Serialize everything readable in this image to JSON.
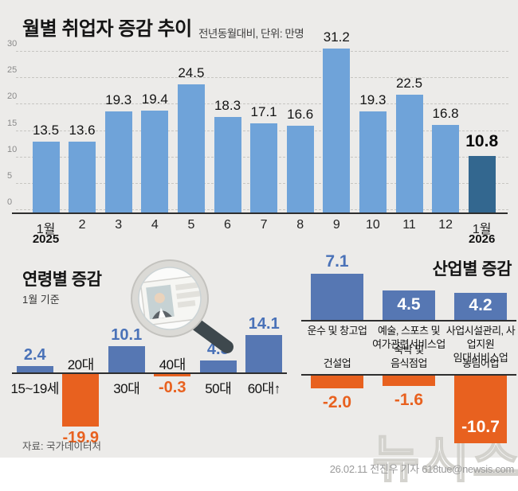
{
  "header": {
    "title": "월별 취업자 증감 추이",
    "subtitle": "전년동월대비, 단위: 만명"
  },
  "colors": {
    "background": "#ECEBE9",
    "bar_blue": "#6FA3D9",
    "bar_dark_blue": "#33678F",
    "bar_deep_blue": "#5677B3",
    "bar_orange": "#E8611F",
    "value_blue_text": "#4A72B8",
    "value_orange_text": "#E8611F"
  },
  "chart_data": [
    {
      "name": "monthly-employment-change",
      "type": "bar",
      "title": "월별 취업자 증감 추이",
      "subtitle": "전년동월대비, 단위: 만명",
      "categories": [
        "1월",
        "2",
        "3",
        "4",
        "5",
        "6",
        "7",
        "8",
        "9",
        "10",
        "11",
        "12",
        "1월"
      ],
      "category_years": {
        "0": "2025",
        "12": "2026"
      },
      "values": [
        13.5,
        13.6,
        19.3,
        19.4,
        24.5,
        18.3,
        17.1,
        16.6,
        31.2,
        19.3,
        22.5,
        16.8,
        10.8
      ],
      "highlight_index": 12,
      "yticks": [
        0,
        5,
        10,
        15,
        20,
        25,
        30
      ],
      "ylim": [
        0,
        32
      ],
      "grid": "dashed horizontal",
      "legend": "none"
    },
    {
      "name": "change-by-age",
      "type": "bar",
      "title": "연령별 증감",
      "subtitle": "1월 기준",
      "categories": [
        "15~19세",
        "20대",
        "30대",
        "40대",
        "50대",
        "60대↑"
      ],
      "values": [
        2.4,
        -19.9,
        10.1,
        -0.3,
        4.5,
        14.1
      ]
    },
    {
      "name": "change-by-industry",
      "type": "bar",
      "title": "산업별 증감",
      "positive": {
        "categories": [
          [
            "운수 및 창고업"
          ],
          [
            "예술, 스포츠 및",
            "여가관련서비스업"
          ],
          [
            "사업시설관리, 사업지원",
            "임대서비스업"
          ]
        ],
        "values": [
          7.1,
          4.5,
          4.2
        ]
      },
      "negative": {
        "categories": [
          [
            "건설업"
          ],
          [
            "숙박 및",
            "음식점업"
          ],
          [
            "농림어업"
          ]
        ],
        "values": [
          -2.0,
          -1.6,
          -10.7
        ]
      }
    }
  ],
  "footer": {
    "source": "자료: 국가데이터처",
    "credit": "26.02.11 전진우 기자 618tue@newsis.com",
    "watermark": "뉴시스"
  }
}
